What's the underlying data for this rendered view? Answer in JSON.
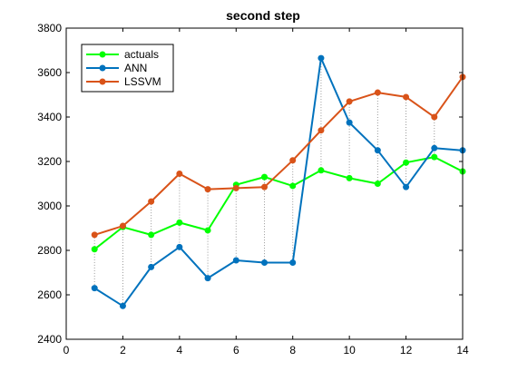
{
  "chart_data": {
    "type": "line",
    "title": "second step",
    "xlabel": "",
    "ylabel": "",
    "xlim": [
      0,
      14
    ],
    "ylim": [
      2400,
      3800
    ],
    "xticks": [
      0,
      2,
      4,
      6,
      8,
      10,
      12,
      14
    ],
    "yticks": [
      2400,
      2600,
      2800,
      3000,
      3200,
      3400,
      3600,
      3800
    ],
    "grid": false,
    "legend_position": "top-left",
    "x": [
      1,
      2,
      3,
      4,
      5,
      6,
      7,
      8,
      9,
      10,
      11,
      12,
      13,
      14
    ],
    "series": [
      {
        "name": "actuals",
        "color": "#00ff00",
        "values": [
          2805,
          2905,
          2870,
          2925,
          2890,
          3095,
          3130,
          3090,
          3160,
          3125,
          3100,
          3195,
          3220,
          3155
        ]
      },
      {
        "name": "ANN",
        "color": "#0072bd",
        "values": [
          2630,
          2550,
          2725,
          2815,
          2675,
          2755,
          2745,
          2745,
          3665,
          3375,
          3250,
          3085,
          3260,
          3250
        ]
      },
      {
        "name": "LSSVM",
        "color": "#d95319",
        "values": [
          2870,
          2910,
          3020,
          3145,
          3075,
          3080,
          3085,
          3205,
          3340,
          3470,
          3510,
          3490,
          3400,
          3580
        ]
      }
    ],
    "connector_lines": "dotted gray vertical lines spanning all series at each x"
  }
}
